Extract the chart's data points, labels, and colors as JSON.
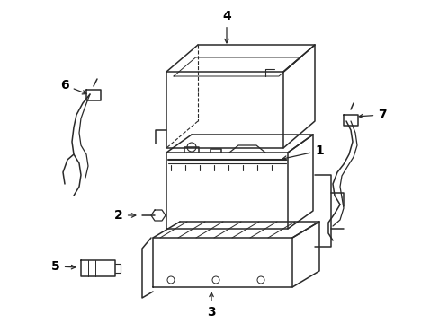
{
  "bg_color": "#ffffff",
  "line_color": "#2a2a2a",
  "label_color": "#000000",
  "fig_width": 4.89,
  "fig_height": 3.6,
  "dpi": 100,
  "label_fontsize": 10,
  "line_width": 1.1
}
